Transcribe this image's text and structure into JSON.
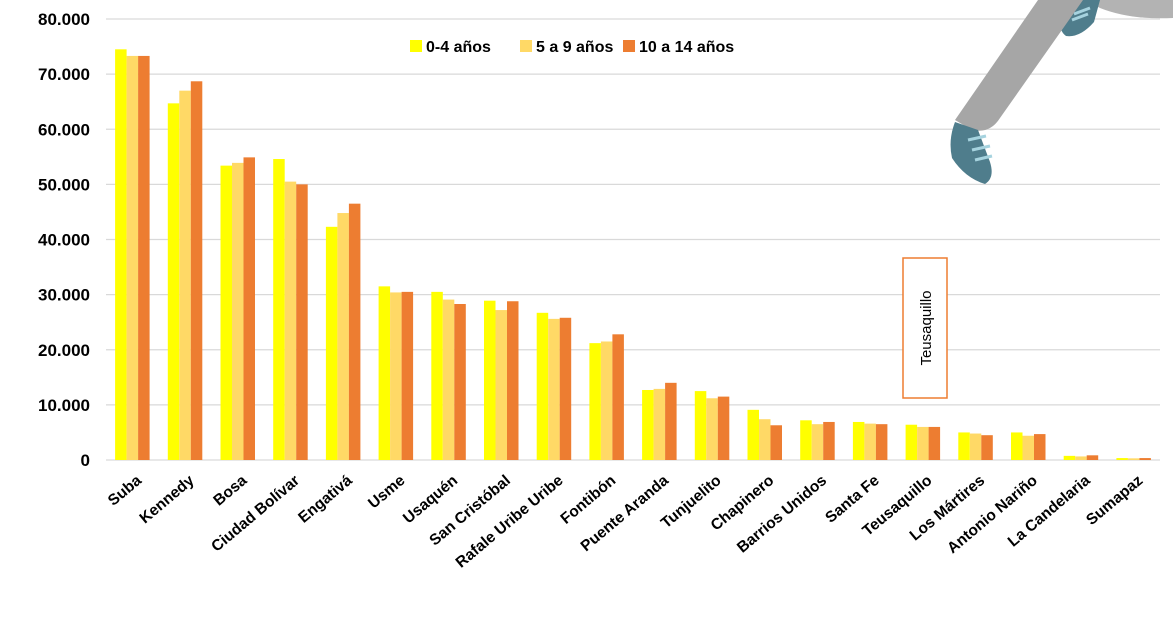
{
  "chart_data": {
    "type": "bar",
    "categories": [
      "Suba",
      "Kennedy",
      "Bosa",
      "Ciudad Bolívar",
      "Engativá",
      "Usme",
      "Usaquén",
      "San Cristóbal",
      "Rafale Uribe Uribe",
      "Fontibón",
      "Puente  Aranda",
      "Tunjuelito",
      "Chapinero",
      "Barrios Unidos",
      "Santa Fe",
      "Teusaquillo",
      "Los Mártires",
      "Antonio Nariño",
      "La Candelaria",
      "Sumapaz"
    ],
    "series": [
      {
        "name": "0-4 años",
        "color": "#FFFF00",
        "values": [
          74500,
          64700,
          53400,
          54600,
          42300,
          31500,
          30500,
          28900,
          26700,
          21200,
          12700,
          12500,
          9100,
          7200,
          6900,
          6400,
          5000,
          5000,
          750,
          350
        ]
      },
      {
        "name": "5 a 9 años",
        "color": "#FFD966",
        "values": [
          73300,
          67000,
          53900,
          50500,
          44800,
          30400,
          29100,
          27200,
          25600,
          21500,
          12900,
          11200,
          7400,
          6500,
          6600,
          6000,
          4800,
          4400,
          650,
          300
        ]
      },
      {
        "name": "10 a 14 años",
        "color": "#ED7D31",
        "values": [
          73300,
          68700,
          54900,
          50000,
          46500,
          30500,
          28300,
          28800,
          25800,
          22800,
          14000,
          11500,
          6300,
          6900,
          6500,
          6000,
          4500,
          4700,
          850,
          350
        ]
      }
    ],
    "y_ticks": [
      "0",
      "10.000",
      "20.000",
      "30.000",
      "40.000",
      "50.000",
      "60.000",
      "70.000",
      "80.000"
    ],
    "ylim": [
      0,
      80000
    ],
    "grid": true,
    "legend": "top",
    "annotation": "Teusaquillo",
    "title": "",
    "xlabel": "",
    "ylabel": ""
  },
  "colors": {
    "grid": "#d9d9d9",
    "annotation_border": "#ED7D31"
  },
  "icons": [
    "runner-leg-illustration"
  ]
}
